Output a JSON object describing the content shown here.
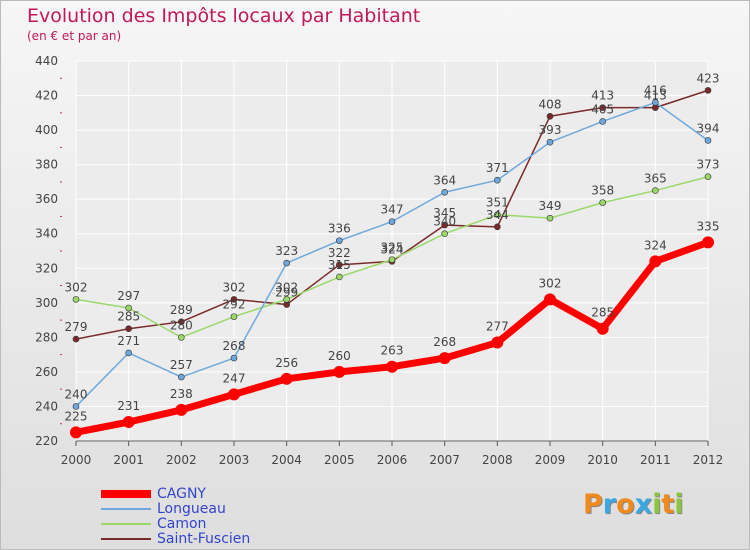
{
  "title": "Evolution des Impôts locaux par Habitant",
  "subtitle": "(en € et par an)",
  "logo": {
    "text": "Proxiti",
    "letters": [
      {
        "ch": "P",
        "color": "#f08a1c"
      },
      {
        "ch": "r",
        "color": "#3aa8e0"
      },
      {
        "ch": "o",
        "color": "#f08a1c"
      },
      {
        "ch": "x",
        "color": "#3aa8e0"
      },
      {
        "ch": "i",
        "color": "#8cc63e"
      },
      {
        "ch": "t",
        "color": "#f08a1c"
      },
      {
        "ch": "i",
        "color": "#8cc63e"
      }
    ]
  },
  "chart_data": {
    "type": "line",
    "x": [
      "2000",
      "2001",
      "2002",
      "2003",
      "2004",
      "2005",
      "2006",
      "2007",
      "2008",
      "2009",
      "2010",
      "2011",
      "2012"
    ],
    "ylim": [
      220,
      440
    ],
    "yticks": [
      220,
      240,
      260,
      280,
      300,
      320,
      340,
      360,
      380,
      400,
      420,
      440
    ],
    "grid": true,
    "legend_position": "bottom-left",
    "series": [
      {
        "name": "CAGNY",
        "color": "#ff0000",
        "values": [
          225,
          231,
          238,
          247,
          256,
          260,
          263,
          268,
          277,
          302,
          285,
          324,
          335
        ]
      },
      {
        "name": "Longueau",
        "color": "#6fa8dc",
        "values": [
          240,
          271,
          257,
          268,
          323,
          336,
          347,
          364,
          371,
          393,
          405,
          416,
          394
        ]
      },
      {
        "name": "Camon",
        "color": "#9ad86a",
        "values": [
          302,
          297,
          280,
          292,
          302,
          315,
          325,
          340,
          351,
          349,
          358,
          365,
          373
        ]
      },
      {
        "name": "Saint-Fuscien",
        "color": "#7a2a2a",
        "values": [
          279,
          285,
          289,
          302,
          299,
          322,
          324,
          345,
          344,
          408,
          413,
          413,
          423
        ]
      }
    ]
  }
}
